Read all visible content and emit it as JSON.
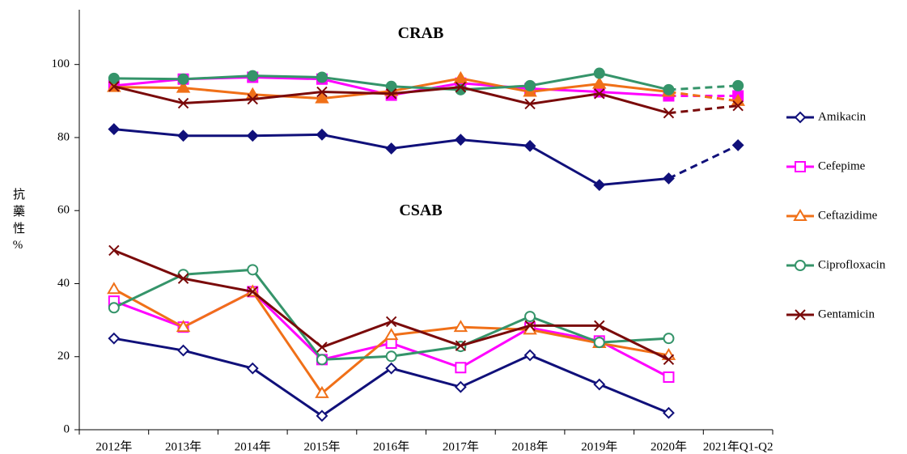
{
  "chart_data": {
    "type": "line",
    "y_label": "抗藥性%",
    "categories": [
      "2012年",
      "2013年",
      "2014年",
      "2015年",
      "2016年",
      "2017年",
      "2018年",
      "2019年",
      "2020年",
      "2021年Q1-Q2"
    ],
    "ylim": [
      0,
      115
    ],
    "yticks": [
      0,
      20,
      40,
      60,
      80,
      100
    ],
    "grid": false,
    "series": [
      {
        "name": "Amikacin",
        "color": "#10107a",
        "marker": "diamond"
      },
      {
        "name": "Cefepime",
        "color": "#ff00ff",
        "marker": "square"
      },
      {
        "name": "Ceftazidime",
        "color": "#f07018",
        "marker": "triangle"
      },
      {
        "name": "Ciprofloxacin",
        "color": "#35946a",
        "marker": "circle"
      },
      {
        "name": "Gentamicin",
        "color": "#7a0a0a",
        "marker": "x"
      }
    ],
    "groups": [
      {
        "title": "CRAB",
        "filled": true,
        "dashed_last_segment": true,
        "values": [
          [
            82.3,
            80.5,
            80.5,
            80.8,
            77.0,
            79.4,
            77.7,
            67.0,
            68.8,
            77.9
          ],
          [
            94.2,
            96.0,
            96.5,
            96.0,
            91.6,
            94.9,
            93.4,
            92.5,
            91.4,
            91.4
          ],
          [
            93.8,
            93.6,
            91.8,
            90.7,
            92.7,
            96.2,
            92.5,
            94.7,
            92.5,
            90.0
          ],
          [
            96.2,
            96.0,
            96.9,
            96.5,
            94.0,
            93.1,
            94.2,
            97.6,
            93.1,
            94.2
          ],
          [
            94.0,
            89.4,
            90.5,
            92.5,
            92.0,
            93.8,
            89.2,
            92.0,
            86.7,
            88.7
          ]
        ]
      },
      {
        "title": "CSAB",
        "filled": false,
        "dashed_last_segment": false,
        "values": [
          [
            25.0,
            21.7,
            16.8,
            3.8,
            16.8,
            11.7,
            20.4,
            12.4,
            4.6,
            null
          ],
          [
            35.2,
            28.1,
            37.8,
            19.2,
            23.7,
            17.0,
            27.9,
            24.3,
            14.4,
            null
          ],
          [
            38.5,
            28.1,
            37.8,
            10.0,
            25.9,
            28.1,
            27.4,
            23.7,
            20.4,
            null
          ],
          [
            33.4,
            42.5,
            43.8,
            19.2,
            20.1,
            22.8,
            31.0,
            23.9,
            25.0,
            null
          ],
          [
            49.1,
            41.4,
            37.8,
            22.6,
            29.6,
            23.0,
            28.5,
            28.5,
            19.2,
            null
          ]
        ]
      }
    ]
  }
}
